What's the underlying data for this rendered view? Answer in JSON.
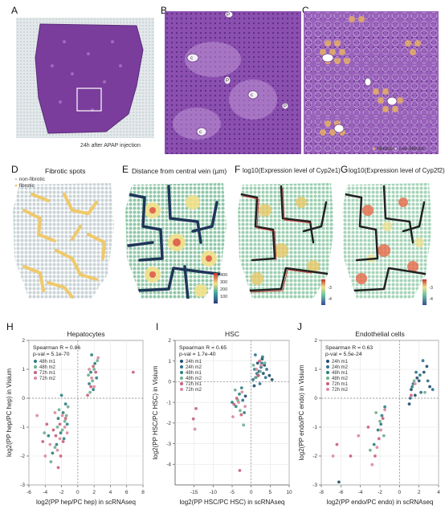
{
  "panel_labels": [
    "A",
    "B",
    "C",
    "D",
    "E",
    "F",
    "G",
    "H",
    "I",
    "J"
  ],
  "panel_a": {
    "caption": "24h after APAP injection"
  },
  "panel_c": {
    "legend": [
      "fibrotic",
      "non-fibrotic"
    ]
  },
  "panel_d": {
    "title": "Fibrotic spots",
    "legend": [
      "non-fibrotic",
      "fibrotic"
    ]
  },
  "panel_e": {
    "title": "Distance from central vein (µm)",
    "colorbar_ticks": [
      "400",
      "300",
      "200",
      "100"
    ]
  },
  "panel_f": {
    "title": "log10(Expression level of Cyp2e1)",
    "colorbar_ticks": [
      "-3",
      "-4"
    ]
  },
  "panel_g": {
    "title": "log10(Expression level of Cyp2f2)",
    "colorbar_ticks": [
      "-3",
      "-4"
    ]
  },
  "colors": {
    "fibrotic": "#f0c96a",
    "non_fibrotic": "#c9d3d6",
    "HE_stain": "#8b4aa8"
  },
  "chart_data": [
    {
      "type": "scatter",
      "title": "Hepatocytes",
      "xlabel": "log2(PP hep/PC hep) in scRNAseq",
      "ylabel": "log2(PP hep/PC hep) in Visium",
      "annotation": [
        "Spearman R = 0.86",
        "p-val = 5.1e-70"
      ],
      "xlim": [
        -6,
        8
      ],
      "ylim": [
        -3,
        2
      ],
      "xticks": [
        -6,
        -4,
        -2,
        0,
        2,
        4,
        6,
        8
      ],
      "yticks": [
        -3,
        -2,
        -1,
        0,
        1,
        2
      ],
      "legend": [
        "48h m1",
        "48h m2",
        "72h m1",
        "72h m2"
      ],
      "legend_colors": [
        "#2a7f7e",
        "#6fae8f",
        "#c8607a",
        "#d98aa0"
      ],
      "series": [
        {
          "name": "48h m1",
          "points": [
            [
              -1.8,
              -0.5
            ],
            [
              -2.1,
              -1.2
            ],
            [
              -1.5,
              -0.2
            ],
            [
              -2.6,
              -1.6
            ],
            [
              1.6,
              0.9
            ],
            [
              2.1,
              1.2
            ],
            [
              1.9,
              0.3
            ],
            [
              -1.3,
              -0.9
            ],
            [
              -3.1,
              -1.9
            ],
            [
              -2.4,
              -0.7
            ],
            [
              1.4,
              0.5
            ],
            [
              2.3,
              0.7
            ],
            [
              -1.7,
              -1.4
            ],
            [
              -2.0,
              0.1
            ],
            [
              -3.6,
              -1.3
            ],
            [
              1.7,
              1.5
            ]
          ]
        },
        {
          "name": "48h m2",
          "points": [
            [
              -1.6,
              -0.8
            ],
            [
              -2.3,
              -0.4
            ],
            [
              -1.9,
              -1.1
            ],
            [
              1.8,
              0.6
            ],
            [
              2.0,
              1.0
            ],
            [
              -2.8,
              -1.7
            ],
            [
              -1.2,
              -0.3
            ],
            [
              1.5,
              0.2
            ],
            [
              -2.5,
              -1.0
            ],
            [
              -4.1,
              -1.2
            ],
            [
              2.4,
              1.3
            ],
            [
              -1.4,
              -0.6
            ],
            [
              -3.3,
              -2.2
            ],
            [
              1.3,
              0.8
            ]
          ]
        },
        {
          "name": "72h m1",
          "points": [
            [
              -2.2,
              -0.9
            ],
            [
              -1.8,
              -1.5
            ],
            [
              -2.7,
              -1.3
            ],
            [
              1.6,
              0.4
            ],
            [
              2.2,
              0.9
            ],
            [
              -3.0,
              -1.1
            ],
            [
              -1.5,
              -0.7
            ],
            [
              -2.1,
              -2.0
            ],
            [
              1.9,
              1.1
            ],
            [
              -4.3,
              -1.5
            ],
            [
              -3.8,
              -0.9
            ],
            [
              6.8,
              0.9
            ],
            [
              -2.4,
              -2.4
            ],
            [
              1.2,
              0.1
            ]
          ]
        },
        {
          "name": "72h m2",
          "points": [
            [
              -1.9,
              -0.6
            ],
            [
              -2.5,
              -1.8
            ],
            [
              -1.6,
              -1.0
            ],
            [
              1.7,
              0.7
            ],
            [
              2.0,
              0.4
            ],
            [
              -3.4,
              -1.6
            ],
            [
              -1.3,
              -1.2
            ],
            [
              -2.8,
              -0.5
            ],
            [
              2.5,
              1.4
            ],
            [
              -4.0,
              -2.0
            ],
            [
              1.4,
              1.0
            ],
            [
              -2.2,
              -1.4
            ],
            [
              -5.0,
              -0.6
            ]
          ]
        }
      ]
    },
    {
      "type": "scatter",
      "title": "HSC",
      "xlabel": "log2(PP HSC/PC HSC) in scRNAseq",
      "ylabel": "log2(PP HSC/PC HSC) in Visium",
      "annotation": [
        "Spearman R = 0.65",
        "p-val = 1.7e-40"
      ],
      "xlim": [
        -20,
        10
      ],
      "ylim": [
        -5,
        2
      ],
      "xticks": [
        -15,
        -10,
        -5,
        0,
        5,
        10
      ],
      "yticks": [
        -4,
        -3,
        -2,
        -1,
        0,
        1,
        2
      ],
      "legend": [
        "24h m1",
        "24h m2",
        "48h m1",
        "48h m2",
        "72h m1",
        "72h m2"
      ],
      "legend_colors": [
        "#1f4e6b",
        "#2f6f8f",
        "#2a7f7e",
        "#6fae8f",
        "#c8607a",
        "#d98aa0"
      ],
      "series": [
        {
          "name": "24h m1",
          "points": [
            [
              2.1,
              0.5
            ],
            [
              3.5,
              0.8
            ],
            [
              1.2,
              0.2
            ],
            [
              4.8,
              0.3
            ],
            [
              2.9,
              1.1
            ],
            [
              -1.5,
              -0.7
            ],
            [
              0.8,
              -0.2
            ],
            [
              5.5,
              0.1
            ],
            [
              1.7,
              0.9
            ],
            [
              3.2,
              0.4
            ]
          ]
        },
        {
          "name": "24h m2",
          "points": [
            [
              1.9,
              0.3
            ],
            [
              2.6,
              0.7
            ],
            [
              0.5,
              0.1
            ],
            [
              4.1,
              0.6
            ],
            [
              -2.2,
              -0.9
            ],
            [
              3.8,
              0.2
            ],
            [
              1.1,
              1.3
            ],
            [
              2.3,
              -0.1
            ]
          ]
        },
        {
          "name": "48h m1",
          "points": [
            [
              -3.1,
              -0.6
            ],
            [
              -4.0,
              -1.2
            ],
            [
              1.5,
              0.4
            ],
            [
              2.8,
              0.9
            ],
            [
              -2.5,
              -0.3
            ],
            [
              0.9,
              0.6
            ],
            [
              -5.0,
              -1.0
            ],
            [
              3.0,
              1.2
            ],
            [
              -1.8,
              -1.5
            ]
          ]
        },
        {
          "name": "48h m2",
          "points": [
            [
              -3.5,
              -0.9
            ],
            [
              -2.9,
              -1.4
            ],
            [
              1.3,
              0.2
            ],
            [
              2.4,
              0.5
            ],
            [
              -4.2,
              -0.4
            ],
            [
              0.6,
              0.8
            ],
            [
              3.6,
              0.9
            ],
            [
              -2.0,
              -2.1
            ]
          ]
        },
        {
          "name": "72h m1",
          "points": [
            [
              -14.5,
              -1.3
            ],
            [
              -15.2,
              -1.8
            ],
            [
              -3.8,
              -0.8
            ],
            [
              1.8,
              0.3
            ],
            [
              -2.6,
              -1.6
            ],
            [
              2.2,
              1.0
            ],
            [
              -4.5,
              -1.1
            ],
            [
              -3.0,
              -4.3
            ]
          ]
        },
        {
          "name": "72h m2",
          "points": [
            [
              -14.8,
              -2.3
            ],
            [
              -3.3,
              -1.0
            ],
            [
              1.4,
              0.6
            ],
            [
              -2.4,
              -0.5
            ],
            [
              2.6,
              0.8
            ],
            [
              -4.8,
              -1.7
            ],
            [
              -1.6,
              -1.2
            ]
          ]
        }
      ]
    },
    {
      "type": "scatter",
      "title": "Endothelial cells",
      "xlabel": "log2(PP endo/PC endo) in scRNAseq",
      "ylabel": "log2(PP endo/PC endo) in Visium",
      "annotation": [
        "Spearman R = 0.63",
        "p-val = 5.5e-24"
      ],
      "xlim": [
        -8,
        4
      ],
      "ylim": [
        -3,
        2
      ],
      "xticks": [
        -8,
        -6,
        -4,
        -2,
        0,
        2,
        4
      ],
      "yticks": [
        -3,
        -2,
        -1,
        0,
        1,
        2
      ],
      "legend": [
        "24h m1",
        "24h m2",
        "48h m1",
        "48h m2",
        "72h m1",
        "72h m2"
      ],
      "legend_colors": [
        "#1f4e6b",
        "#2f6f8f",
        "#2a7f7e",
        "#6fae8f",
        "#c8607a",
        "#d98aa0"
      ],
      "series": [
        {
          "name": "24h m1",
          "points": [
            [
              1.2,
              0.3
            ],
            [
              2.0,
              0.6
            ],
            [
              1.6,
              0.1
            ],
            [
              2.5,
              0.9
            ],
            [
              3.1,
              0.4
            ],
            [
              1.0,
              -0.2
            ],
            [
              2.8,
              1.1
            ],
            [
              1.8,
              0.7
            ],
            [
              -6.2,
              -2.9
            ]
          ]
        },
        {
          "name": "24h m2",
          "points": [
            [
              1.4,
              0.5
            ],
            [
              2.2,
              0.2
            ],
            [
              1.7,
              0.9
            ],
            [
              2.9,
              0.6
            ],
            [
              1.1,
              0.0
            ],
            [
              3.4,
              0.3
            ],
            [
              2.4,
              1.3
            ]
          ]
        },
        {
          "name": "48h m1",
          "points": [
            [
              -1.8,
              -0.6
            ],
            [
              -2.2,
              -1.1
            ],
            [
              1.3,
              0.4
            ],
            [
              -1.5,
              -0.3
            ],
            [
              2.1,
              0.8
            ],
            [
              -2.6,
              -1.6
            ],
            [
              -1.9,
              -0.9
            ]
          ]
        },
        {
          "name": "48h m2",
          "points": [
            [
              -2.0,
              -0.8
            ],
            [
              -1.6,
              -1.3
            ],
            [
              1.5,
              0.6
            ],
            [
              -2.4,
              -0.5
            ],
            [
              2.6,
              0.2
            ],
            [
              -3.0,
              -1.8
            ]
          ]
        },
        {
          "name": "72h m1",
          "points": [
            [
              -2.1,
              -1.4
            ],
            [
              -1.7,
              -0.7
            ],
            [
              -2.5,
              -2.0
            ],
            [
              1.2,
              0.1
            ],
            [
              -3.2,
              -1.0
            ],
            [
              -6.4,
              -1.6
            ],
            [
              -5.0,
              -2.0
            ]
          ]
        },
        {
          "name": "72h m2",
          "points": [
            [
              -1.9,
              -1.1
            ],
            [
              -2.3,
              -1.7
            ],
            [
              -1.5,
              -0.4
            ],
            [
              -2.8,
              -2.3
            ],
            [
              1.6,
              0.5
            ],
            [
              -6.8,
              -2.0
            ],
            [
              -4.2,
              -1.3
            ]
          ]
        }
      ]
    }
  ]
}
